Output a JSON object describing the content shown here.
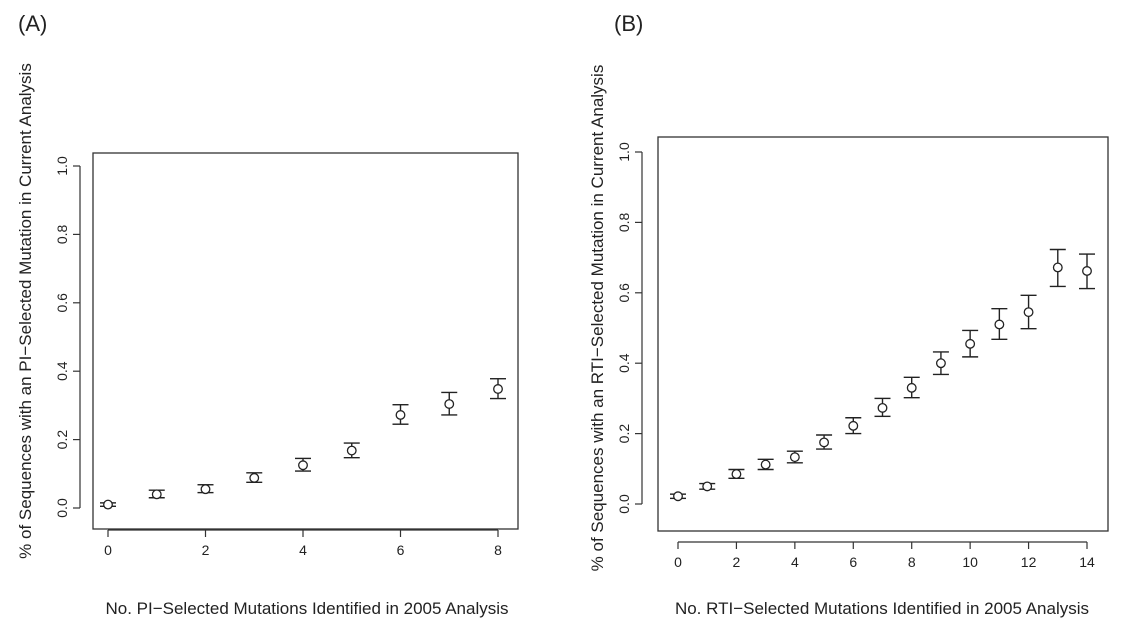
{
  "chart_data": [
    {
      "type": "scatter",
      "panel_label": "(A)",
      "xlabel": "No. PI−Selected Mutations Identified in 2005 Analysis",
      "ylabel": "% of Sequences with an PI−Selected Mutation in Current Analysis",
      "xlim": [
        0,
        8
      ],
      "ylim": [
        0,
        1
      ],
      "x_ticks": [
        0,
        2,
        4,
        6,
        8
      ],
      "y_ticks": [
        0.0,
        0.2,
        0.4,
        0.6,
        0.8,
        1.0
      ],
      "y_tick_labels": [
        "0.0",
        "0.2",
        "0.4",
        "0.6",
        "0.8",
        "1.0"
      ],
      "grid": false,
      "points": [
        {
          "x": 0,
          "y": 0.01,
          "lo": 0.005,
          "hi": 0.015
        },
        {
          "x": 1,
          "y": 0.04,
          "lo": 0.03,
          "hi": 0.052
        },
        {
          "x": 2,
          "y": 0.055,
          "lo": 0.045,
          "hi": 0.068
        },
        {
          "x": 3,
          "y": 0.088,
          "lo": 0.075,
          "hi": 0.103
        },
        {
          "x": 4,
          "y": 0.125,
          "lo": 0.108,
          "hi": 0.145
        },
        {
          "x": 5,
          "y": 0.168,
          "lo": 0.147,
          "hi": 0.19
        },
        {
          "x": 6,
          "y": 0.272,
          "lo": 0.245,
          "hi": 0.302
        },
        {
          "x": 7,
          "y": 0.304,
          "lo": 0.272,
          "hi": 0.338
        },
        {
          "x": 8,
          "y": 0.348,
          "lo": 0.32,
          "hi": 0.378
        }
      ]
    },
    {
      "type": "scatter",
      "panel_label": "(B)",
      "xlabel": "No. RTI−Selected Mutations Identified in 2005 Analysis",
      "ylabel": "% of Sequences with an RTI−Selected Mutation in Current Analysis",
      "xlim": [
        0,
        14
      ],
      "ylim": [
        0,
        1
      ],
      "x_ticks": [
        0,
        2,
        4,
        6,
        8,
        10,
        12,
        14
      ],
      "y_ticks": [
        0.0,
        0.2,
        0.4,
        0.6,
        0.8,
        1.0
      ],
      "y_tick_labels": [
        "0.0",
        "0.2",
        "0.4",
        "0.6",
        "0.8",
        "1.0"
      ],
      "grid": false,
      "points": [
        {
          "x": 0,
          "y": 0.022,
          "lo": 0.016,
          "hi": 0.028
        },
        {
          "x": 1,
          "y": 0.05,
          "lo": 0.042,
          "hi": 0.058
        },
        {
          "x": 2,
          "y": 0.085,
          "lo": 0.073,
          "hi": 0.098
        },
        {
          "x": 3,
          "y": 0.112,
          "lo": 0.098,
          "hi": 0.127
        },
        {
          "x": 4,
          "y": 0.133,
          "lo": 0.117,
          "hi": 0.15
        },
        {
          "x": 5,
          "y": 0.175,
          "lo": 0.156,
          "hi": 0.196
        },
        {
          "x": 6,
          "y": 0.222,
          "lo": 0.2,
          "hi": 0.245
        },
        {
          "x": 7,
          "y": 0.273,
          "lo": 0.249,
          "hi": 0.3
        },
        {
          "x": 8,
          "y": 0.33,
          "lo": 0.302,
          "hi": 0.36
        },
        {
          "x": 9,
          "y": 0.4,
          "lo": 0.368,
          "hi": 0.432
        },
        {
          "x": 10,
          "y": 0.455,
          "lo": 0.418,
          "hi": 0.493
        },
        {
          "x": 11,
          "y": 0.51,
          "lo": 0.468,
          "hi": 0.555
        },
        {
          "x": 12,
          "y": 0.545,
          "lo": 0.498,
          "hi": 0.593
        },
        {
          "x": 13,
          "y": 0.672,
          "lo": 0.618,
          "hi": 0.723
        },
        {
          "x": 14,
          "y": 0.662,
          "lo": 0.612,
          "hi": 0.71
        }
      ]
    }
  ]
}
